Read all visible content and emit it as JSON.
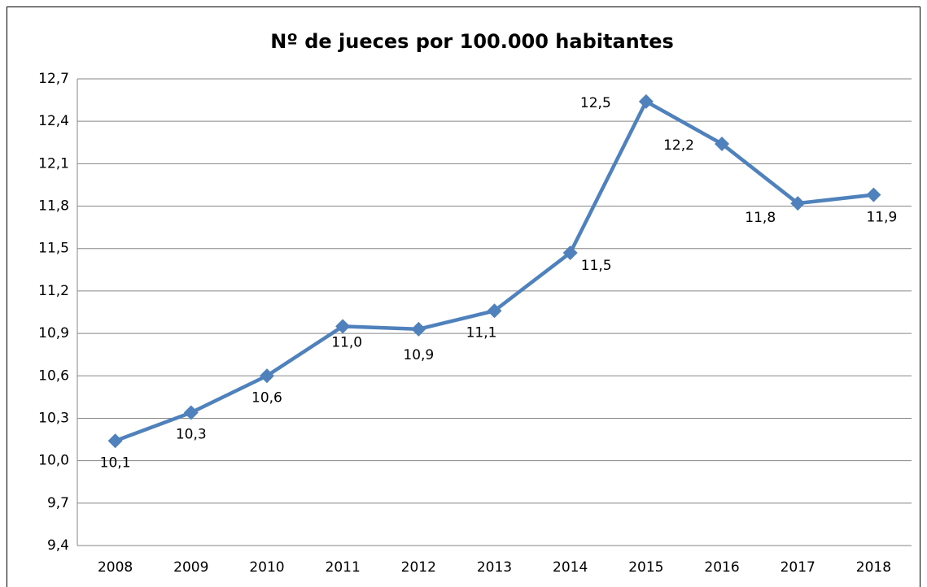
{
  "chart_data": {
    "type": "line",
    "title": "Nº de jueces por 100.000 habitantes",
    "categories": [
      "2008",
      "2009",
      "2010",
      "2011",
      "2012",
      "2013",
      "2014",
      "2015",
      "2016",
      "2017",
      "2018"
    ],
    "series": [
      {
        "name": "Nº de jueces",
        "color": "#4f81bd",
        "values": [
          10.14,
          10.34,
          10.6,
          10.95,
          10.93,
          11.06,
          11.47,
          12.54,
          12.24,
          11.82,
          11.88
        ],
        "value_labels": [
          "10,1",
          "10,3",
          "10,6",
          "11,0",
          "10,9",
          "11,1",
          "11,5",
          "12,5",
          "12,2",
          "11,8",
          "11,9"
        ]
      }
    ],
    "ylim": [
      9.4,
      12.7
    ],
    "yticks": [
      {
        "value": 9.4,
        "label": "9,4"
      },
      {
        "value": 9.7,
        "label": "9,7"
      },
      {
        "value": 10.0,
        "label": "10,0"
      },
      {
        "value": 10.3,
        "label": "10,3"
      },
      {
        "value": 10.6,
        "label": "10,6"
      },
      {
        "value": 10.9,
        "label": "10,9"
      },
      {
        "value": 11.2,
        "label": "11,2"
      },
      {
        "value": 11.5,
        "label": "11,5"
      },
      {
        "value": 11.8,
        "label": "11,8"
      },
      {
        "value": 12.1,
        "label": "12,1"
      },
      {
        "value": 12.4,
        "label": "12,4"
      },
      {
        "value": 12.7,
        "label": "12,7"
      }
    ],
    "grid": true
  }
}
